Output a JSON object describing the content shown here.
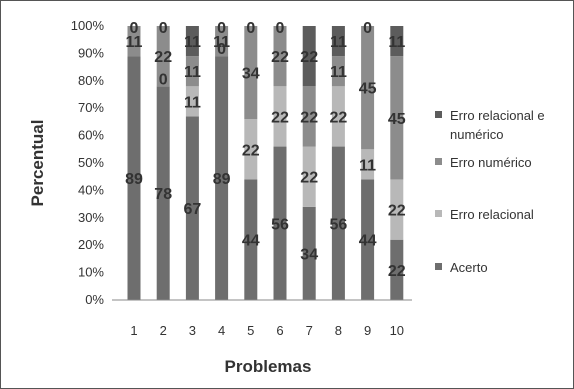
{
  "chart_data": {
    "type": "bar",
    "stacked": true,
    "normalized": true,
    "title": "",
    "xlabel": "Problemas",
    "ylabel": "Percentual",
    "categories": [
      "1",
      "2",
      "3",
      "4",
      "5",
      "6",
      "7",
      "8",
      "9",
      "10"
    ],
    "ylim": [
      0,
      100
    ],
    "yticks": [
      "0%",
      "10%",
      "20%",
      "30%",
      "40%",
      "50%",
      "60%",
      "70%",
      "80%",
      "90%",
      "100%"
    ],
    "grid": false,
    "legend_position": "right",
    "series": [
      {
        "name": "Acerto",
        "color": "#6e6e6e",
        "values": [
          89,
          78,
          67,
          89,
          44,
          56,
          34,
          56,
          44,
          22
        ]
      },
      {
        "name": "Erro relacional",
        "color": "#b8b8b8",
        "values": [
          0,
          0,
          11,
          0,
          22,
          22,
          22,
          22,
          11,
          22
        ]
      },
      {
        "name": "Erro numérico",
        "color": "#8c8c8c",
        "values": [
          11,
          22,
          11,
          11,
          34,
          22,
          22,
          11,
          45,
          45
        ]
      },
      {
        "name": "Erro relacional e numérico",
        "color": "#5c5c5c",
        "values": [
          0,
          0,
          11,
          0,
          0,
          0,
          22,
          11,
          0,
          11
        ]
      }
    ],
    "data_labels": [
      [
        "89",
        "",
        "11",
        "0"
      ],
      [
        "78",
        "0",
        "22",
        "0"
      ],
      [
        "67",
        "11",
        "11",
        "11"
      ],
      [
        "89",
        "0",
        "11",
        "0"
      ],
      [
        "44",
        "22",
        "34",
        "0"
      ],
      [
        "56",
        "22",
        "22",
        "0"
      ],
      [
        "34",
        "22",
        "22",
        "22"
      ],
      [
        "56",
        "22",
        "11",
        "11"
      ],
      [
        "44",
        "11",
        "45",
        "0"
      ],
      [
        "22",
        "22",
        "45",
        "11"
      ]
    ],
    "legend": [
      {
        "lines": [
          "Erro relacional e",
          "numérico"
        ],
        "color": "#5c5c5c"
      },
      {
        "lines": [
          "Erro numérico"
        ],
        "color": "#8c8c8c"
      },
      {
        "lines": [
          "Erro relacional"
        ],
        "color": "#b8b8b8"
      },
      {
        "lines": [
          "Acerto"
        ],
        "color": "#6e6e6e"
      }
    ]
  }
}
